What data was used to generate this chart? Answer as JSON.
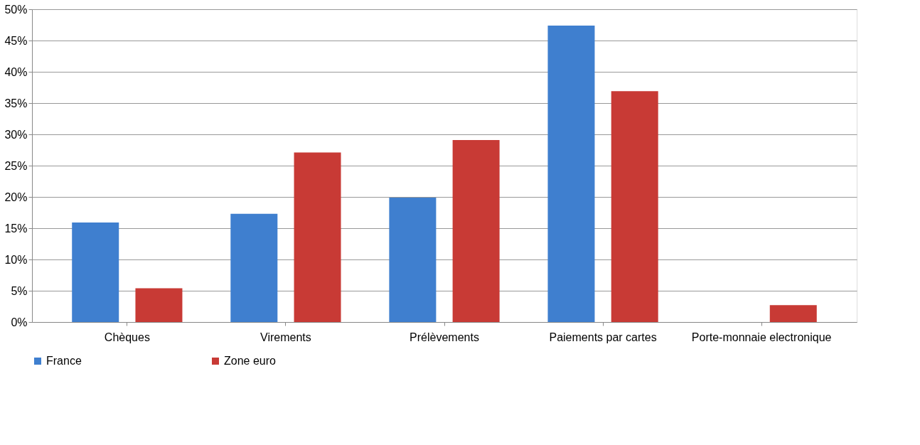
{
  "chart_data": {
    "type": "bar",
    "categories": [
      "Chèques",
      "Virements",
      "Prélèvements",
      "Paiements par cartes",
      "Porte-monnaie electronique"
    ],
    "series": [
      {
        "name": "France",
        "color": "#3f7fcf",
        "values": [
          15.9,
          17.3,
          19.9,
          47.4,
          0
        ]
      },
      {
        "name": "Zone euro",
        "color": "#c83a35",
        "values": [
          5.4,
          27.1,
          29.1,
          36.9,
          2.7
        ]
      }
    ],
    "ylim": [
      0,
      50
    ],
    "yticks": [
      {
        "value": 0,
        "label": "0%"
      },
      {
        "value": 5,
        "label": "5%"
      },
      {
        "value": 10,
        "label": "10%"
      },
      {
        "value": 15,
        "label": "15%"
      },
      {
        "value": 20,
        "label": "20%"
      },
      {
        "value": 25,
        "label": "25%"
      },
      {
        "value": 30,
        "label": "30%"
      },
      {
        "value": 35,
        "label": "35%"
      },
      {
        "value": 40,
        "label": "40%"
      },
      {
        "value": 45,
        "label": "45%"
      },
      {
        "value": 50,
        "label": "50%"
      }
    ],
    "grid": "y",
    "legend": "bottom"
  }
}
